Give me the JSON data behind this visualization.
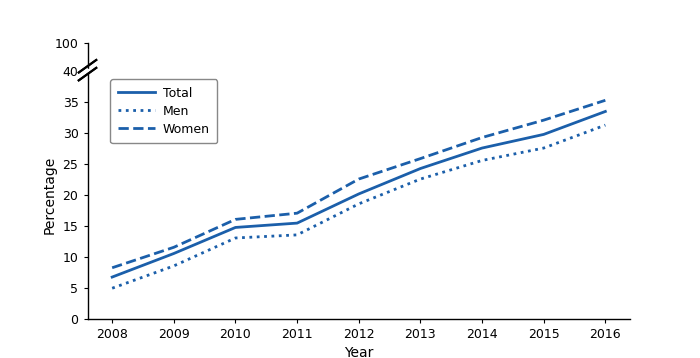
{
  "years": [
    2008,
    2009,
    2010,
    2011,
    2012,
    2013,
    2014,
    2015,
    2016
  ],
  "total": [
    6.7,
    10.5,
    14.7,
    15.4,
    20.1,
    24.2,
    27.5,
    29.7,
    33.4
  ],
  "men": [
    4.9,
    8.5,
    13.0,
    13.5,
    18.5,
    22.5,
    25.5,
    27.5,
    31.2
  ],
  "women": [
    8.2,
    11.5,
    16.0,
    17.0,
    22.5,
    25.8,
    29.2,
    32.0,
    35.2
  ],
  "line_color": "#1b5faa",
  "ylabel": "Percentage",
  "xlabel": "Year",
  "legend_labels": [
    "Total",
    "Men",
    "Women"
  ],
  "yticks_main": [
    0,
    5,
    10,
    15,
    20,
    25,
    30,
    35,
    40
  ],
  "ylim_main": [
    0,
    40
  ],
  "background_color": "#ffffff"
}
